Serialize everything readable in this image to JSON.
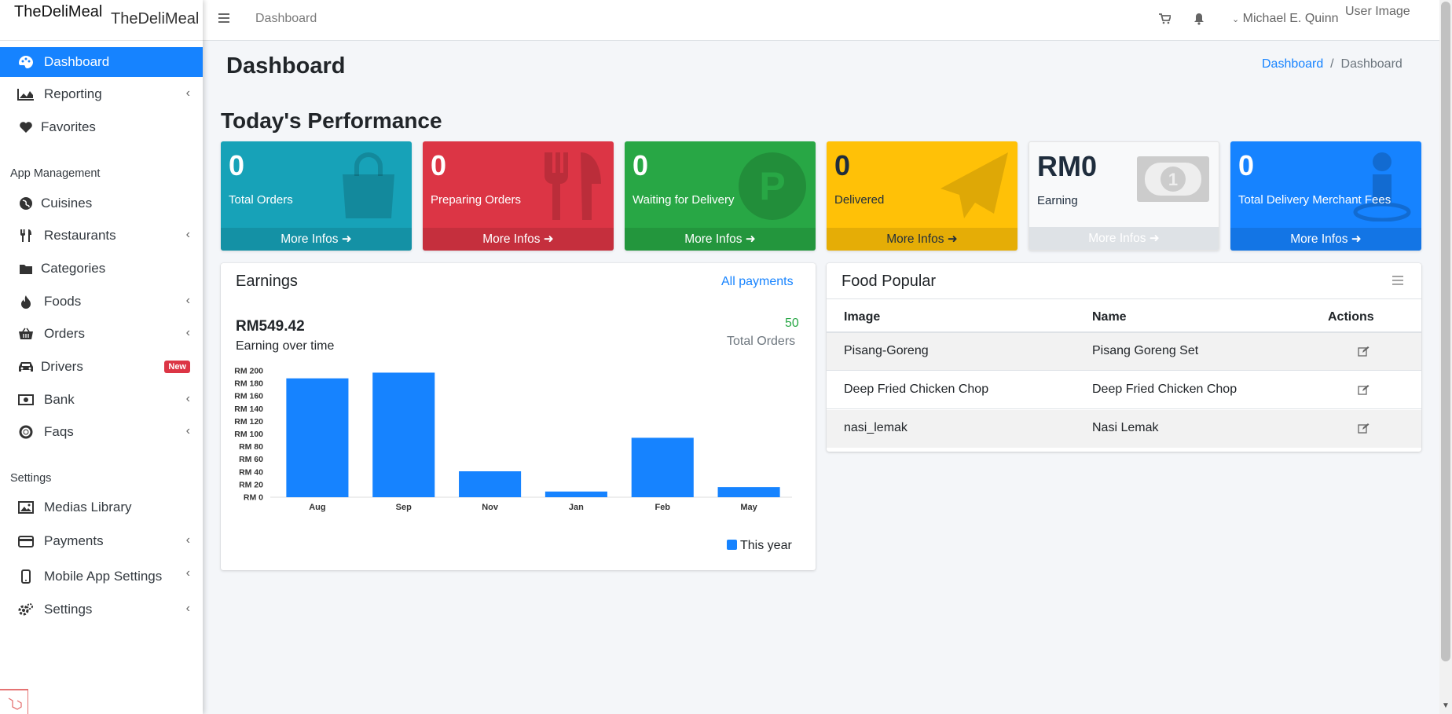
{
  "brand": {
    "primary": "TheDeliMeal",
    "secondary": "TheDeliMeal"
  },
  "topbar": {
    "link": "Dashboard",
    "user": "Michael E. Quinn",
    "user_image_alt": "User Image"
  },
  "sidebar": {
    "items": [
      {
        "label": "Dashboard",
        "icon": "palette-icon"
      },
      {
        "label": "Reporting",
        "icon": "area-chart-icon"
      },
      {
        "label": "Favorites",
        "icon": "heart-icon"
      },
      {
        "label": "Cuisines",
        "icon": "globe-icon"
      },
      {
        "label": "Restaurants",
        "icon": "utensils-icon"
      },
      {
        "label": "Categories",
        "icon": "folder-icon"
      },
      {
        "label": "Foods",
        "icon": "fire-icon"
      },
      {
        "label": "Orders",
        "icon": "basket-icon"
      },
      {
        "label": "Drivers",
        "icon": "car-icon",
        "badge": "New"
      },
      {
        "label": "Bank",
        "icon": "money-icon"
      },
      {
        "label": "Faqs",
        "icon": "life-ring-icon"
      },
      {
        "label": "Medias Library",
        "icon": "image-icon"
      },
      {
        "label": "Payments",
        "icon": "credit-card-icon"
      },
      {
        "label": "Mobile App Settings",
        "icon": "mobile-icon"
      },
      {
        "label": "Settings",
        "icon": "cogs-icon"
      }
    ],
    "headers": {
      "app": "App Management",
      "settings": "Settings"
    }
  },
  "page": {
    "title": "Dashboard",
    "breadcrumb": [
      "Dashboard",
      "Dashboard"
    ],
    "section": "Today's Performance"
  },
  "tiles": [
    {
      "value": "0",
      "label": "Total Orders",
      "more": "More Infos ➜",
      "icon": "shopping-bag-icon"
    },
    {
      "value": "0",
      "label": "Preparing Orders",
      "more": "More Infos ➜",
      "icon": "cutlery-icon"
    },
    {
      "value": "0",
      "label": "Waiting for Delivery",
      "more": "More Infos ➜",
      "icon": "parking-icon"
    },
    {
      "value": "0",
      "label": "Delivered",
      "more": "More Infos ➜",
      "icon": "paper-plane-icon"
    },
    {
      "value": "RM0",
      "label": "Earning",
      "more": "More Infos ➜",
      "icon": "money-bill-icon"
    },
    {
      "value": "0",
      "label": "Total Delivery Merchant Fees",
      "more": "More Infos ➜",
      "icon": "pin-icon"
    }
  ],
  "earnings": {
    "title": "Earnings",
    "link": "All payments",
    "amount": "RM549.42",
    "amount_label": "Earning over time",
    "orders_value": "50",
    "orders_label": "Total Orders",
    "legend": "This year"
  },
  "chart_data": {
    "type": "bar",
    "categories": [
      "Aug",
      "Sep",
      "Nov",
      "Jan",
      "Feb",
      "May"
    ],
    "series": [
      {
        "name": "This year",
        "values": [
          188,
          197,
          41,
          9,
          94,
          16
        ]
      }
    ],
    "ylim": [
      0,
      200
    ],
    "yticks": [
      "RM 0",
      "RM 20",
      "RM 40",
      "RM 60",
      "RM 80",
      "RM 100",
      "RM 120",
      "RM 140",
      "RM 160",
      "RM 180",
      "RM 200"
    ],
    "title": "",
    "xlabel": "",
    "ylabel": "",
    "legend_position": "bottom-right",
    "color": "#1683ff"
  },
  "food_popular": {
    "title": "Food Popular",
    "headers": [
      "Image",
      "Name",
      "Actions"
    ],
    "rows": [
      {
        "image": "Pisang-Goreng",
        "name": "Pisang Goreng Set"
      },
      {
        "image": "Deep Fried Chicken Chop",
        "name": "Deep Fried Chicken Chop"
      },
      {
        "image": "nasi_lemak",
        "name": "Nasi Lemak"
      }
    ]
  }
}
